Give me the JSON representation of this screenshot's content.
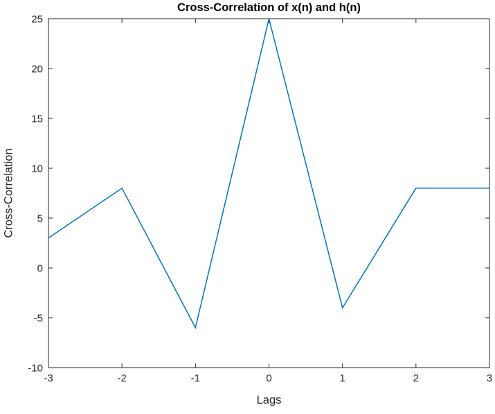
{
  "figure": {
    "background": "#ffffff"
  },
  "chart_data": {
    "type": "line",
    "title": "Cross-Correlation of x(n) and h(n)",
    "xlabel": "Lags",
    "ylabel": "Cross-Correlation",
    "x": [
      -3,
      -2,
      -1,
      0,
      1,
      2,
      3
    ],
    "values": [
      3,
      8,
      -6,
      25,
      -4,
      8,
      8
    ],
    "xlim": [
      -3,
      3
    ],
    "ylim": [
      -10,
      25
    ],
    "xticks": [
      -3,
      -2,
      -1,
      0,
      1,
      2,
      3
    ],
    "xtick_labels": [
      "-3",
      "-2",
      "-1",
      "0",
      "1",
      "2",
      "3"
    ],
    "yticks": [
      -10,
      -5,
      0,
      5,
      10,
      15,
      20,
      25
    ],
    "ytick_labels": [
      "-10",
      "-5",
      "0",
      "5",
      "10",
      "15",
      "20",
      "25"
    ],
    "grid": false,
    "legend_position": "none",
    "line_color": "#0072BD",
    "axis_color": "#262626",
    "box": true,
    "tick_direction": "in"
  }
}
